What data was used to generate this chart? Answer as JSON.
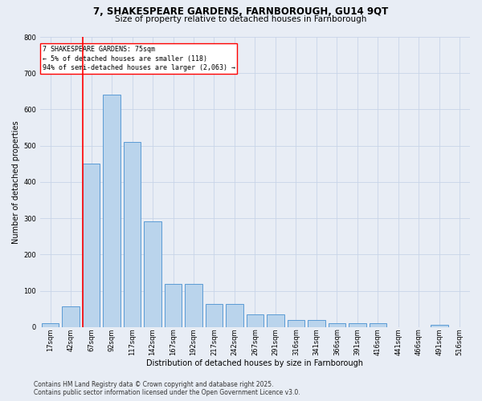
{
  "title": "7, SHAKESPEARE GARDENS, FARNBOROUGH, GU14 9QT",
  "subtitle": "Size of property relative to detached houses in Farnborough",
  "xlabel": "Distribution of detached houses by size in Farnborough",
  "ylabel": "Number of detached properties",
  "footnote1": "Contains HM Land Registry data © Crown copyright and database right 2025.",
  "footnote2": "Contains public sector information licensed under the Open Government Licence v3.0.",
  "bar_labels": [
    "17sqm",
    "42sqm",
    "67sqm",
    "92sqm",
    "117sqm",
    "142sqm",
    "167sqm",
    "192sqm",
    "217sqm",
    "242sqm",
    "267sqm",
    "291sqm",
    "316sqm",
    "341sqm",
    "366sqm",
    "391sqm",
    "416sqm",
    "441sqm",
    "466sqm",
    "491sqm",
    "516sqm"
  ],
  "bar_values": [
    12,
    57,
    450,
    640,
    510,
    292,
    120,
    120,
    65,
    65,
    35,
    35,
    20,
    20,
    10,
    10,
    10,
    0,
    0,
    7,
    0
  ],
  "bar_color": "#bad4ec",
  "bar_edge_color": "#5b9bd5",
  "grid_color": "#c8d4e8",
  "background_color": "#e8edf5",
  "vline_color": "red",
  "vline_x_index": 2,
  "annotation_line1": "7 SHAKESPEARE GARDENS: 75sqm",
  "annotation_line2": "← 5% of detached houses are smaller (118)",
  "annotation_line3": "94% of semi-detached houses are larger (2,063) →",
  "annotation_box_color": "white",
  "annotation_box_edge": "red",
  "ylim": [
    0,
    800
  ],
  "yticks": [
    0,
    100,
    200,
    300,
    400,
    500,
    600,
    700,
    800
  ],
  "title_fontsize": 8.5,
  "subtitle_fontsize": 7.5,
  "axis_label_fontsize": 7,
  "tick_fontsize": 6,
  "annotation_fontsize": 6,
  "footnote_fontsize": 5.5
}
